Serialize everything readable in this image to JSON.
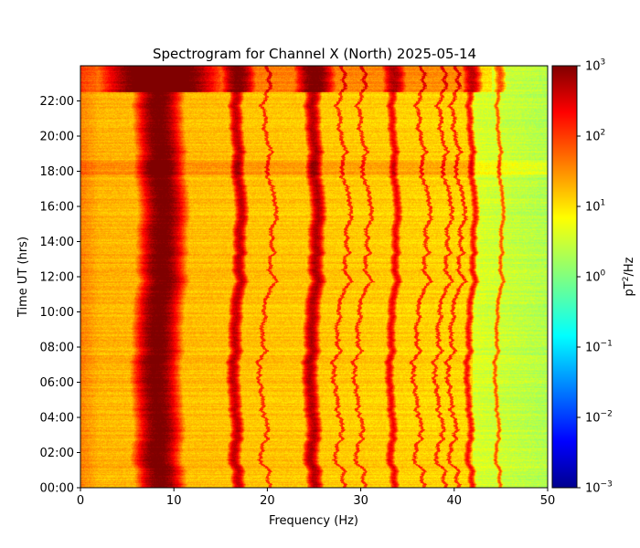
{
  "chart_data": {
    "type": "heatmap",
    "title": "Spectrogram for Channel X (North) 2025-05-14",
    "xlabel": "Frequency (Hz)",
    "ylabel": "Time UT (hrs)",
    "xlim": [
      0,
      50
    ],
    "ylim": [
      0,
      24
    ],
    "x_ticks": [
      "0",
      "10",
      "20",
      "30",
      "40",
      "50"
    ],
    "x_tick_values": [
      0,
      10,
      20,
      30,
      40,
      50
    ],
    "y_ticks": [
      "00:00",
      "02:00",
      "04:00",
      "06:00",
      "08:00",
      "10:00",
      "12:00",
      "14:00",
      "16:00",
      "18:00",
      "20:00",
      "22:00"
    ],
    "y_tick_values": [
      0,
      2,
      4,
      6,
      8,
      10,
      12,
      14,
      16,
      18,
      20,
      22
    ],
    "colorbar": {
      "label_main": "pT",
      "label_sup": "2",
      "label_tail": "/Hz",
      "scale": "log",
      "range": [
        0.001,
        1000
      ],
      "colormap": "jet",
      "ticks": [
        {
          "value": 1000,
          "base": "10",
          "exp": "3"
        },
        {
          "value": 100,
          "base": "10",
          "exp": "2"
        },
        {
          "value": 10,
          "base": "10",
          "exp": "1"
        },
        {
          "value": 1,
          "base": "10",
          "exp": "0"
        },
        {
          "value": 0.1,
          "base": "10",
          "exp": "−1"
        },
        {
          "value": 0.01,
          "base": "10",
          "exp": "−2"
        },
        {
          "value": 0.001,
          "base": "10",
          "exp": "−3"
        }
      ]
    },
    "background_level_log10": 1.2,
    "background_high_freq_log10": 0.3,
    "resonance_bands": [
      {
        "freq_hz": 8.5,
        "width_hz": 2.2,
        "log10_peak": 3.1
      },
      {
        "freq_hz": 16.8,
        "width_hz": 0.7,
        "log10_peak": 2.6
      },
      {
        "freq_hz": 25.0,
        "width_hz": 0.8,
        "log10_peak": 2.7
      },
      {
        "freq_hz": 33.5,
        "width_hz": 0.5,
        "log10_peak": 2.3
      },
      {
        "freq_hz": 41.8,
        "width_hz": 0.4,
        "log10_peak": 2.2
      },
      {
        "freq_hz": 44.8,
        "width_hz": 0.25,
        "log10_peak": 1.8
      }
    ],
    "narrow_lines_hz": [
      20.0,
      28.0,
      30.2,
      36.5,
      38.8,
      40.2
    ],
    "enhanced_period_hours": [
      22.5,
      24
    ],
    "disturbance_hours": [
      17.8,
      18.6
    ]
  }
}
